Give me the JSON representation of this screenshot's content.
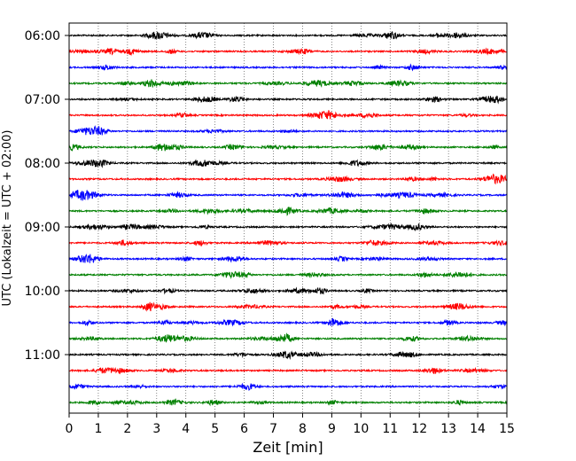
{
  "chart_data": {
    "type": "line",
    "xlabel": "Zeit  [min]",
    "ylabel": "UTC (Lokalzeit = UTC + 02:00)",
    "xlim": [
      0,
      15
    ],
    "x_ticks": [
      "0",
      "1",
      "2",
      "3",
      "4",
      "5",
      "6",
      "7",
      "8",
      "9",
      "10",
      "11",
      "12",
      "13",
      "14",
      "15"
    ],
    "x_grid": true,
    "y_ticks": [
      {
        "label": "06:00",
        "trace_index": 0
      },
      {
        "label": "07:00",
        "trace_index": 4
      },
      {
        "label": "08:00",
        "trace_index": 8
      },
      {
        "label": "09:00",
        "trace_index": 12
      },
      {
        "label": "10:00",
        "trace_index": 16
      },
      {
        "label": "11:00",
        "trace_index": 20
      }
    ],
    "trace_interval_minutes": 15,
    "trace_count": 24,
    "trace_color_cycle": [
      "#000000",
      "#ff0000",
      "#0000ff",
      "#008000"
    ]
  }
}
